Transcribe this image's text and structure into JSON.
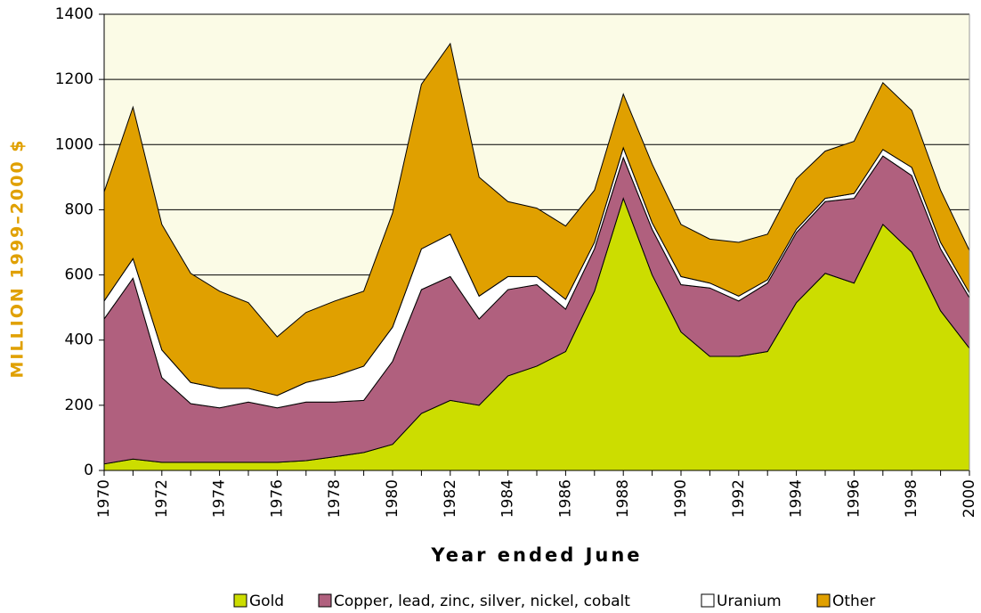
{
  "chart_data": {
    "type": "stacked-area",
    "y_label": "MILLION 1999–2000 $",
    "x_label": "Year ended June",
    "x": [
      1970,
      1971,
      1972,
      1973,
      1974,
      1975,
      1976,
      1977,
      1978,
      1979,
      1980,
      1981,
      1982,
      1983,
      1984,
      1985,
      1986,
      1987,
      1988,
      1989,
      1990,
      1991,
      1992,
      1993,
      1994,
      1995,
      1996,
      1997,
      1998,
      1999,
      2000
    ],
    "series": [
      {
        "name": "Gold",
        "color": "#ccdd00",
        "values": [
          20,
          35,
          25,
          25,
          25,
          25,
          25,
          30,
          42,
          55,
          80,
          175,
          215,
          200,
          290,
          320,
          365,
          550,
          835,
          600,
          425,
          350,
          350,
          365,
          515,
          605,
          575,
          755,
          670,
          490,
          375
        ]
      },
      {
        "name": "Copper, lead, zinc, silver, nickel, cobalt",
        "color": "#b0607e",
        "values": [
          445,
          555,
          260,
          180,
          167,
          185,
          167,
          180,
          168,
          160,
          255,
          380,
          380,
          265,
          265,
          250,
          130,
          130,
          125,
          140,
          145,
          210,
          170,
          210,
          215,
          220,
          260,
          210,
          235,
          190,
          155
        ]
      },
      {
        "name": "Uranium",
        "color": "#ffffff",
        "values": [
          55,
          60,
          85,
          65,
          60,
          42,
          38,
          60,
          80,
          105,
          105,
          125,
          130,
          70,
          40,
          25,
          30,
          20,
          30,
          20,
          25,
          15,
          15,
          10,
          10,
          10,
          15,
          20,
          25,
          20,
          15
        ]
      },
      {
        "name": "Other",
        "color": "#e0a000",
        "values": [
          335,
          465,
          385,
          335,
          298,
          263,
          180,
          215,
          230,
          230,
          350,
          505,
          585,
          365,
          230,
          210,
          225,
          160,
          165,
          180,
          160,
          135,
          165,
          140,
          155,
          145,
          160,
          205,
          175,
          160,
          130
        ]
      }
    ],
    "xlim": [
      1970,
      2000
    ],
    "xticks": [
      1970,
      1972,
      1974,
      1976,
      1978,
      1980,
      1982,
      1984,
      1986,
      1988,
      1990,
      1992,
      1994,
      1996,
      1998,
      2000
    ],
    "ylim": [
      0,
      1400
    ],
    "yticks": [
      0,
      200,
      400,
      600,
      800,
      1000,
      1200,
      1400
    ],
    "grid": true,
    "legend": "bottom"
  }
}
